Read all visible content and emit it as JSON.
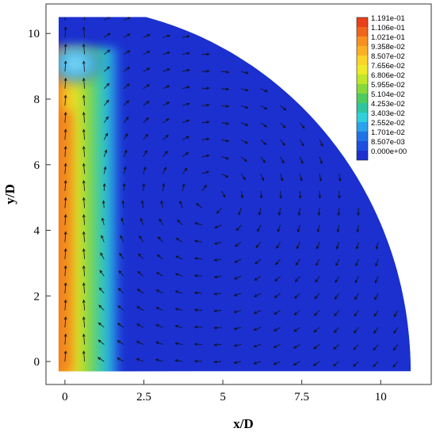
{
  "chart_data": {
    "type": "heatmap",
    "title": "",
    "xlabel": "x/D",
    "ylabel": "y/D",
    "xlim": [
      -0.6,
      11.6
    ],
    "ylim": [
      -0.7,
      10.9
    ],
    "x_ticks": [
      {
        "value": 0,
        "label": "0"
      },
      {
        "value": 2.5,
        "label": "2.5"
      },
      {
        "value": 5,
        "label": "5"
      },
      {
        "value": 7.5,
        "label": "7.5"
      },
      {
        "value": 10,
        "label": "10"
      }
    ],
    "y_ticks": [
      {
        "value": 0,
        "label": "0"
      },
      {
        "value": 2,
        "label": "2"
      },
      {
        "value": 4,
        "label": "4"
      },
      {
        "value": 6,
        "label": "6"
      },
      {
        "value": 8,
        "label": "8"
      },
      {
        "value": 10,
        "label": "10"
      }
    ],
    "domain": {
      "shape": "quarter-circle",
      "center": [
        -0.2,
        -0.3
      ],
      "radius": 11.15,
      "top_y": 10.5
    },
    "vector_overlay": true,
    "legend": {
      "placement": "top-right",
      "levels": [
        {
          "label": "1.191e-01",
          "color": "#e8411b"
        },
        {
          "label": "1.106e-01",
          "color": "#f0641c"
        },
        {
          "label": "1.021e-01",
          "color": "#f89020"
        },
        {
          "label": "9.358e-02",
          "color": "#fbb024"
        },
        {
          "label": "8.507e-02",
          "color": "#fbd427"
        },
        {
          "label": "7.656e-02",
          "color": "#eeea27"
        },
        {
          "label": "6.806e-02",
          "color": "#bfe629"
        },
        {
          "label": "5.955e-02",
          "color": "#86d93a"
        },
        {
          "label": "5.104e-02",
          "color": "#4ccb5e"
        },
        {
          "label": "4.253e-02",
          "color": "#2dc6a0"
        },
        {
          "label": "3.403e-02",
          "color": "#2ed0dc"
        },
        {
          "label": "2.552e-02",
          "color": "#2aa2ec"
        },
        {
          "label": "1.701e-02",
          "color": "#1f73e6"
        },
        {
          "label": "8.507e-03",
          "color": "#1a4fe0"
        },
        {
          "label": "0.000e+00",
          "color": "#1b30cf"
        }
      ]
    }
  }
}
